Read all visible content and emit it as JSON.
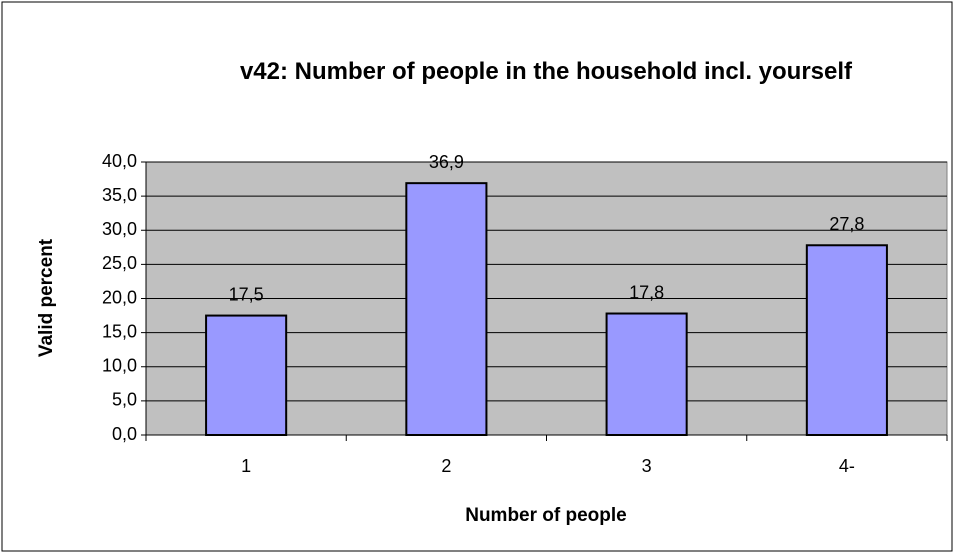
{
  "chart_data": {
    "type": "bar",
    "title": "v42: Number of people in the household incl. yourself",
    "x_label": "Number of people",
    "y_label": "Valid percent",
    "categories": [
      "1",
      "2",
      "3",
      "4-"
    ],
    "values": [
      17.5,
      36.9,
      17.8,
      27.8
    ],
    "value_labels": [
      "17,5",
      "36,9",
      "17,8",
      "27,8"
    ],
    "color": "#9999ff",
    "ylim": [
      0,
      40
    ],
    "yticks": [
      {
        "value": 0,
        "label": "0,0"
      },
      {
        "value": 5,
        "label": "5,0"
      },
      {
        "value": 10,
        "label": "10,0"
      },
      {
        "value": 15,
        "label": "15,0"
      },
      {
        "value": 20,
        "label": "20,0"
      },
      {
        "value": 25,
        "label": "25,0"
      },
      {
        "value": 30,
        "label": "30,0"
      },
      {
        "value": 35,
        "label": "35,0"
      },
      {
        "value": 40,
        "label": "40,0"
      }
    ],
    "grid": true
  }
}
